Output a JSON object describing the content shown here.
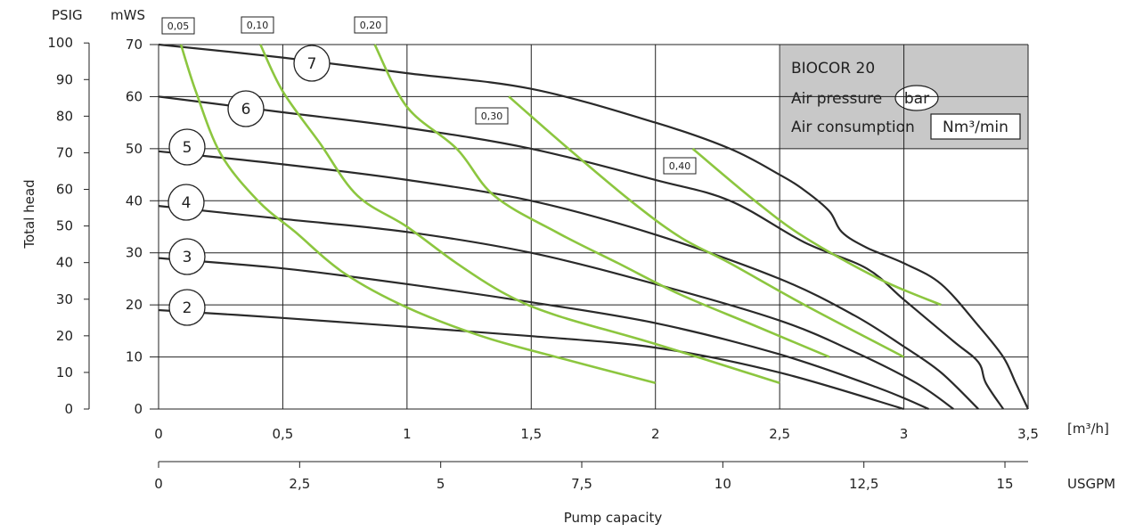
{
  "chart_data": {
    "type": "line",
    "title": "BIOCOR 20",
    "legend": {
      "title": "BIOCOR 20",
      "air_pressure_label": "Air pressure",
      "air_pressure_unit": "bar",
      "air_consumption_label": "Air consumption",
      "air_consumption_unit": "Nm³/min"
    },
    "xlabel": "Pump capacity",
    "ylabel": "Total head",
    "x_unit_primary": "[m³/h]",
    "x_unit_secondary": "USGPM",
    "y_unit_left": "PSIG",
    "y_unit_right": "mWS",
    "xlim": [
      0,
      3.5
    ],
    "ylim": [
      0,
      70
    ],
    "x_ticks": [
      "0",
      "0,5",
      "1",
      "1,5",
      "2",
      "2,5",
      "3",
      "3,5"
    ],
    "x_tick_values": [
      0,
      0.5,
      1,
      1.5,
      2,
      2.5,
      3,
      3.5
    ],
    "x2_ticks": [
      "0",
      "2,5",
      "5",
      "7,5",
      "10",
      "12,5",
      "15"
    ],
    "x2_tick_values": [
      0,
      2.5,
      5,
      7.5,
      10,
      12.5,
      15
    ],
    "y_ticks": [
      "0",
      "10",
      "20",
      "30",
      "40",
      "50",
      "60",
      "70"
    ],
    "y_tick_values": [
      0,
      10,
      20,
      30,
      40,
      50,
      60,
      70
    ],
    "psig_ticks": [
      "0",
      "10",
      "20",
      "30",
      "40",
      "50",
      "60",
      "70",
      "80",
      "90",
      "100"
    ],
    "psig_tick_values": [
      0,
      10,
      20,
      30,
      40,
      50,
      60,
      70,
      80,
      90,
      100
    ],
    "grid": true,
    "pressure_series": [
      {
        "name": "2",
        "points": [
          [
            0,
            19
          ],
          [
            0.5,
            17.5
          ],
          [
            1,
            15.8
          ],
          [
            1.5,
            14
          ],
          [
            2,
            11.8
          ],
          [
            2.5,
            7
          ],
          [
            3,
            0
          ]
        ]
      },
      {
        "name": "3",
        "points": [
          [
            0,
            29
          ],
          [
            0.5,
            27
          ],
          [
            1,
            24
          ],
          [
            1.5,
            20.5
          ],
          [
            2,
            16.5
          ],
          [
            2.5,
            10.5
          ],
          [
            2.9,
            4
          ],
          [
            3.1,
            0
          ]
        ]
      },
      {
        "name": "4",
        "points": [
          [
            0,
            39
          ],
          [
            0.5,
            36.5
          ],
          [
            1,
            34
          ],
          [
            1.5,
            30
          ],
          [
            2,
            24
          ],
          [
            2.5,
            17
          ],
          [
            2.8,
            11
          ],
          [
            3.05,
            5
          ],
          [
            3.2,
            0
          ]
        ]
      },
      {
        "name": "5",
        "points": [
          [
            0,
            49.5
          ],
          [
            0.5,
            47
          ],
          [
            1,
            44
          ],
          [
            1.5,
            40
          ],
          [
            2,
            33.5
          ],
          [
            2.5,
            25
          ],
          [
            2.8,
            18
          ],
          [
            3,
            12
          ],
          [
            3.15,
            7
          ],
          [
            3.3,
            0
          ]
        ]
      },
      {
        "name": "6",
        "points": [
          [
            0,
            60
          ],
          [
            0.5,
            57
          ],
          [
            1,
            54
          ],
          [
            1.5,
            50
          ],
          [
            2,
            44
          ],
          [
            2.3,
            40
          ],
          [
            2.6,
            32
          ],
          [
            2.85,
            27
          ],
          [
            3,
            21
          ],
          [
            3.2,
            13
          ],
          [
            3.3,
            9
          ],
          [
            3.33,
            5
          ],
          [
            3.4,
            0
          ]
        ]
      },
      {
        "name": "7",
        "points": [
          [
            0,
            70
          ],
          [
            0.5,
            67.5
          ],
          [
            1,
            64.5
          ],
          [
            1.5,
            61.5
          ],
          [
            2,
            55
          ],
          [
            2.3,
            50
          ],
          [
            2.5,
            45
          ],
          [
            2.6,
            42
          ],
          [
            2.7,
            38
          ],
          [
            2.75,
            34
          ],
          [
            2.85,
            31
          ],
          [
            3,
            28
          ],
          [
            3.15,
            24
          ],
          [
            3.3,
            16
          ],
          [
            3.4,
            10
          ],
          [
            3.45,
            5
          ],
          [
            3.5,
            0
          ]
        ]
      }
    ],
    "air_consumption_series": [
      {
        "name": "0,05",
        "points": [
          [
            0.09,
            70
          ],
          [
            0.15,
            61
          ],
          [
            0.25,
            49
          ],
          [
            0.4,
            40
          ],
          [
            0.55,
            34
          ],
          [
            0.75,
            26
          ],
          [
            1,
            19.5
          ],
          [
            1.3,
            14
          ],
          [
            1.6,
            10
          ],
          [
            2,
            5
          ]
        ]
      },
      {
        "name": "0,10",
        "points": [
          [
            0.41,
            70
          ],
          [
            0.5,
            61
          ],
          [
            0.65,
            51
          ],
          [
            0.8,
            41
          ],
          [
            1,
            35
          ],
          [
            1.2,
            28
          ],
          [
            1.4,
            22
          ],
          [
            1.6,
            18
          ],
          [
            2,
            12.5
          ],
          [
            2.5,
            5
          ]
        ]
      },
      {
        "name": "0,20",
        "points": [
          [
            0.87,
            70
          ],
          [
            1,
            58
          ],
          [
            1.2,
            50
          ],
          [
            1.35,
            41
          ],
          [
            1.6,
            34
          ],
          [
            1.85,
            28
          ],
          [
            2.1,
            22
          ],
          [
            2.4,
            16
          ],
          [
            2.7,
            10
          ]
        ]
      },
      {
        "name": "0,30",
        "points": [
          [
            1.41,
            60
          ],
          [
            1.65,
            50
          ],
          [
            1.9,
            40
          ],
          [
            2.1,
            33
          ],
          [
            2.3,
            28
          ],
          [
            2.6,
            20
          ],
          [
            3,
            10
          ]
        ]
      },
      {
        "name": "0,40",
        "points": [
          [
            2.15,
            50
          ],
          [
            2.4,
            40
          ],
          [
            2.6,
            33
          ],
          [
            2.9,
            25
          ],
          [
            3.15,
            20
          ]
        ]
      }
    ],
    "pressure_labels": [
      "7",
      "6",
      "5",
      "4",
      "3",
      "2"
    ],
    "consumption_labels": [
      "0,05",
      "0,10",
      "0,20",
      "0,30",
      "0,40"
    ],
    "colors": {
      "pressure_line": "#2a2a2a",
      "air_line": "#8cc63f",
      "grid": "#222222",
      "info_box": "#c8c8c8"
    }
  }
}
